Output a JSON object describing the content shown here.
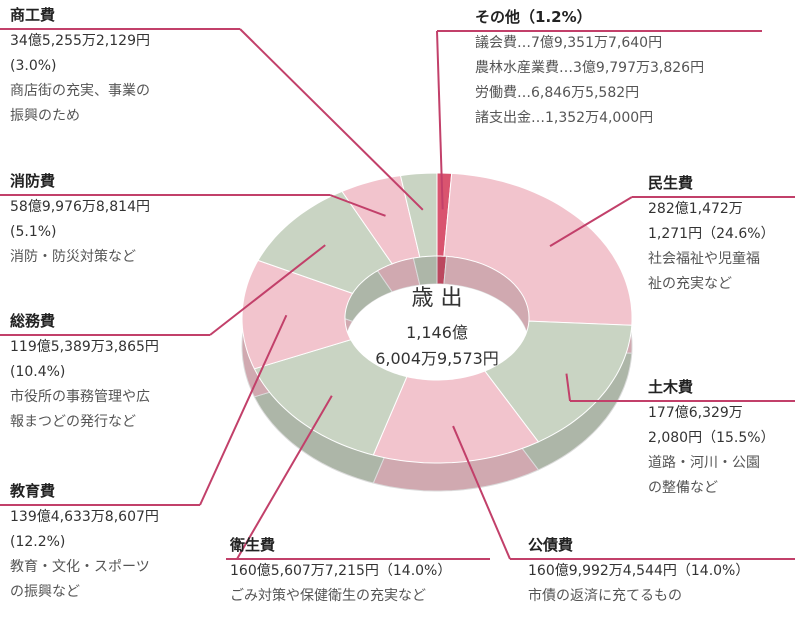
{
  "chart_data": {
    "type": "pie",
    "center_title": "歳 出",
    "total": [
      "1,146億",
      "6,004万9,573円"
    ],
    "categories": [
      "その他",
      "民生費",
      "土木費",
      "公債費",
      "衛生費",
      "教育費",
      "総務費",
      "消防費",
      "商工費"
    ],
    "values": [
      1.2,
      24.6,
      15.5,
      14.0,
      14.0,
      12.2,
      10.4,
      5.1,
      3.0
    ],
    "value_labels": [
      "（1.2%）",
      "（24.6%）",
      "（15.5%）",
      "（14.0%）",
      "（14.0%）",
      "(12.2%)",
      "(10.4%)",
      "(5.1%)",
      "(3.0%)"
    ],
    "colors": [
      "#d9546f",
      "#f2c4cd",
      "#c9d4c3",
      "#f2c4cd",
      "#c9d4c3",
      "#f2c4cd",
      "#c9d4c3",
      "#f2c4cd",
      "#c9d4c3"
    ],
    "amounts": [
      [],
      [
        "282億1,472万",
        "1,271円"
      ],
      [
        "177億6,329万",
        "2,080円"
      ],
      [
        "160億9,992万4,544円"
      ],
      [
        "160億5,607万7,215円"
      ],
      [
        "139億4,633万8,607円"
      ],
      [
        "119億5,389万3,865円"
      ],
      [
        "58億9,976万8,814円"
      ],
      [
        "34億5,255万2,129円"
      ]
    ],
    "descriptions": [
      [
        "議会費…7億9,351万7,640円",
        "農林水産業費…3億9,797万3,826円",
        "労働費…6,846万5,582円",
        "諸支出金…1,352万4,000円"
      ],
      [
        "社会福祉や児童福",
        "祉の充実など"
      ],
      [
        "道路・河川・公園",
        "の整備など"
      ],
      [
        "市債の返済に充てるもの"
      ],
      [
        "ごみ対策や保健衛生の充実など"
      ],
      [
        "教育・文化・スポーツ",
        "の振興など"
      ],
      [
        "市役所の事務管理や広",
        "報まつどの発行など"
      ],
      [
        "消防・防災対策など"
      ],
      [
        "商店街の充実、事業の",
        "振興のため"
      ]
    ]
  }
}
